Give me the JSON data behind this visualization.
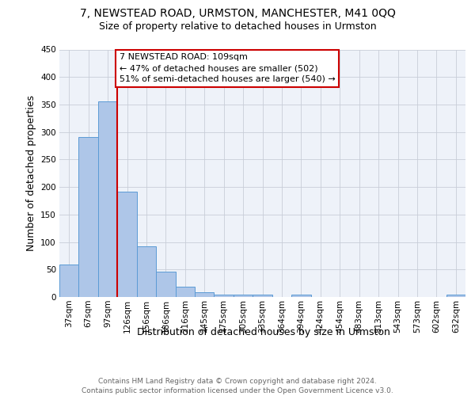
{
  "title": "7, NEWSTEAD ROAD, URMSTON, MANCHESTER, M41 0QQ",
  "subtitle": "Size of property relative to detached houses in Urmston",
  "xlabel": "Distribution of detached houses by size in Urmston",
  "ylabel": "Number of detached properties",
  "categories": [
    "37sqm",
    "67sqm",
    "97sqm",
    "126sqm",
    "156sqm",
    "186sqm",
    "216sqm",
    "245sqm",
    "275sqm",
    "305sqm",
    "335sqm",
    "364sqm",
    "394sqm",
    "424sqm",
    "454sqm",
    "483sqm",
    "513sqm",
    "543sqm",
    "573sqm",
    "602sqm",
    "632sqm"
  ],
  "values": [
    59,
    291,
    355,
    191,
    92,
    46,
    19,
    9,
    4,
    5,
    5,
    0,
    4,
    0,
    0,
    0,
    0,
    0,
    0,
    0,
    4
  ],
  "bar_color": "#aec6e8",
  "bar_edge_color": "#5b9bd5",
  "annotation_line1": "7 NEWSTEAD ROAD: 109sqm",
  "annotation_line2": "← 47% of detached houses are smaller (502)",
  "annotation_line3": "51% of semi-detached houses are larger (540) →",
  "annotation_box_edge_color": "#cc0000",
  "vline_color": "#cc0000",
  "ylim_max": 450,
  "yticks": [
    0,
    50,
    100,
    150,
    200,
    250,
    300,
    350,
    400,
    450
  ],
  "background_color": "#eef2f9",
  "grid_color": "#c8cdd8",
  "title_fontsize": 10,
  "subtitle_fontsize": 9,
  "ylabel_fontsize": 9,
  "xlabel_fontsize": 9,
  "tick_fontsize": 7.5,
  "annotation_fontsize": 8,
  "footer_fontsize": 6.5,
  "footer_line1": "Contains HM Land Registry data © Crown copyright and database right 2024.",
  "footer_line2": "Contains public sector information licensed under the Open Government Licence v3.0."
}
